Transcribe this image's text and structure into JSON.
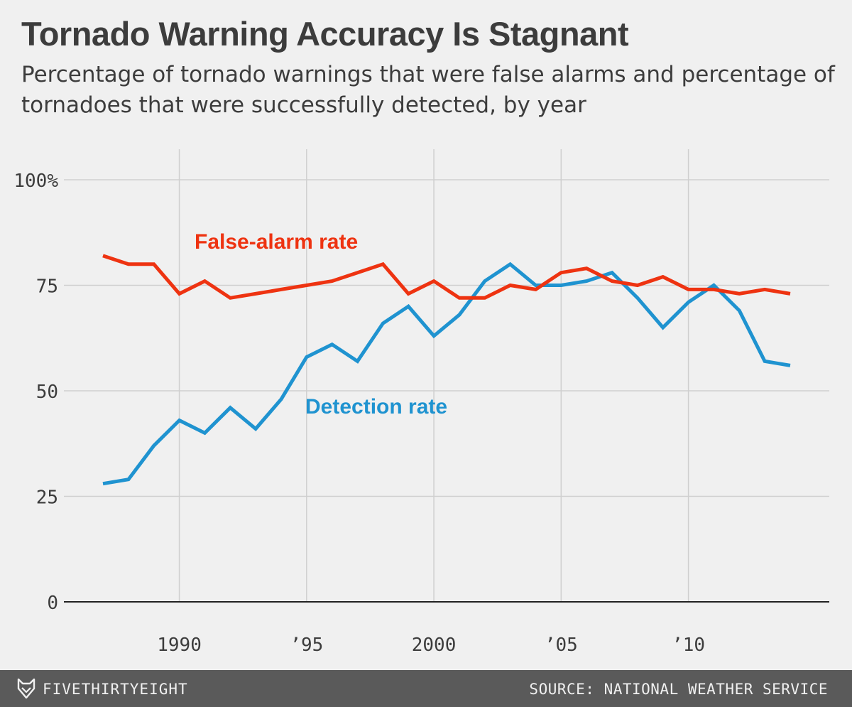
{
  "title": "Tornado Warning Accuracy Is Stagnant",
  "subtitle": "Percentage of tornado warnings that were false alarms and percentage of tornadoes that were successfully detected, by year",
  "footer": {
    "brand": "FIVETHIRTYEIGHT",
    "source": "SOURCE: NATIONAL WEATHER SERVICE"
  },
  "colors": {
    "false_alarm": "#ee3311",
    "detection": "#1f93d0",
    "grid": "#cfcfcf",
    "axis": "#222222",
    "text": "#3c3c3c"
  },
  "chart_data": {
    "type": "line",
    "title": "Tornado Warning Accuracy Is Stagnant",
    "xlabel": "",
    "ylabel": "",
    "xlim": [
      1986.5,
      2015.5
    ],
    "ylim": [
      0,
      100
    ],
    "grid": true,
    "x_ticks": [
      {
        "value": 1990,
        "label": "1990"
      },
      {
        "value": 1995,
        "label": "’95"
      },
      {
        "value": 2000,
        "label": "2000"
      },
      {
        "value": 2005,
        "label": "’05"
      },
      {
        "value": 2010,
        "label": "’10"
      }
    ],
    "y_ticks": [
      {
        "value": 0,
        "label": "0"
      },
      {
        "value": 25,
        "label": "25"
      },
      {
        "value": 50,
        "label": "50"
      },
      {
        "value": 75,
        "label": "75"
      },
      {
        "value": 100,
        "label": "100%"
      }
    ],
    "x": [
      1987,
      1988,
      1989,
      1990,
      1991,
      1992,
      1993,
      1994,
      1995,
      1996,
      1997,
      1998,
      1999,
      2000,
      2001,
      2002,
      2003,
      2004,
      2005,
      2006,
      2007,
      2008,
      2009,
      2010,
      2011,
      2012,
      2013,
      2014
    ],
    "series": [
      {
        "name": "False-alarm rate",
        "color": "#ee3311",
        "values": [
          82,
          80,
          80,
          73,
          76,
          72,
          73,
          74,
          75,
          76,
          78,
          80,
          73,
          76,
          72,
          72,
          75,
          74,
          78,
          79,
          76,
          75,
          77,
          74,
          74,
          73,
          74,
          73
        ]
      },
      {
        "name": "Detection rate",
        "color": "#1f93d0",
        "values": [
          28,
          29,
          37,
          43,
          40,
          46,
          41,
          48,
          58,
          61,
          57,
          66,
          70,
          63,
          68,
          76,
          80,
          75,
          75,
          76,
          78,
          72,
          65,
          71,
          75,
          69,
          57,
          56
        ]
      }
    ]
  }
}
